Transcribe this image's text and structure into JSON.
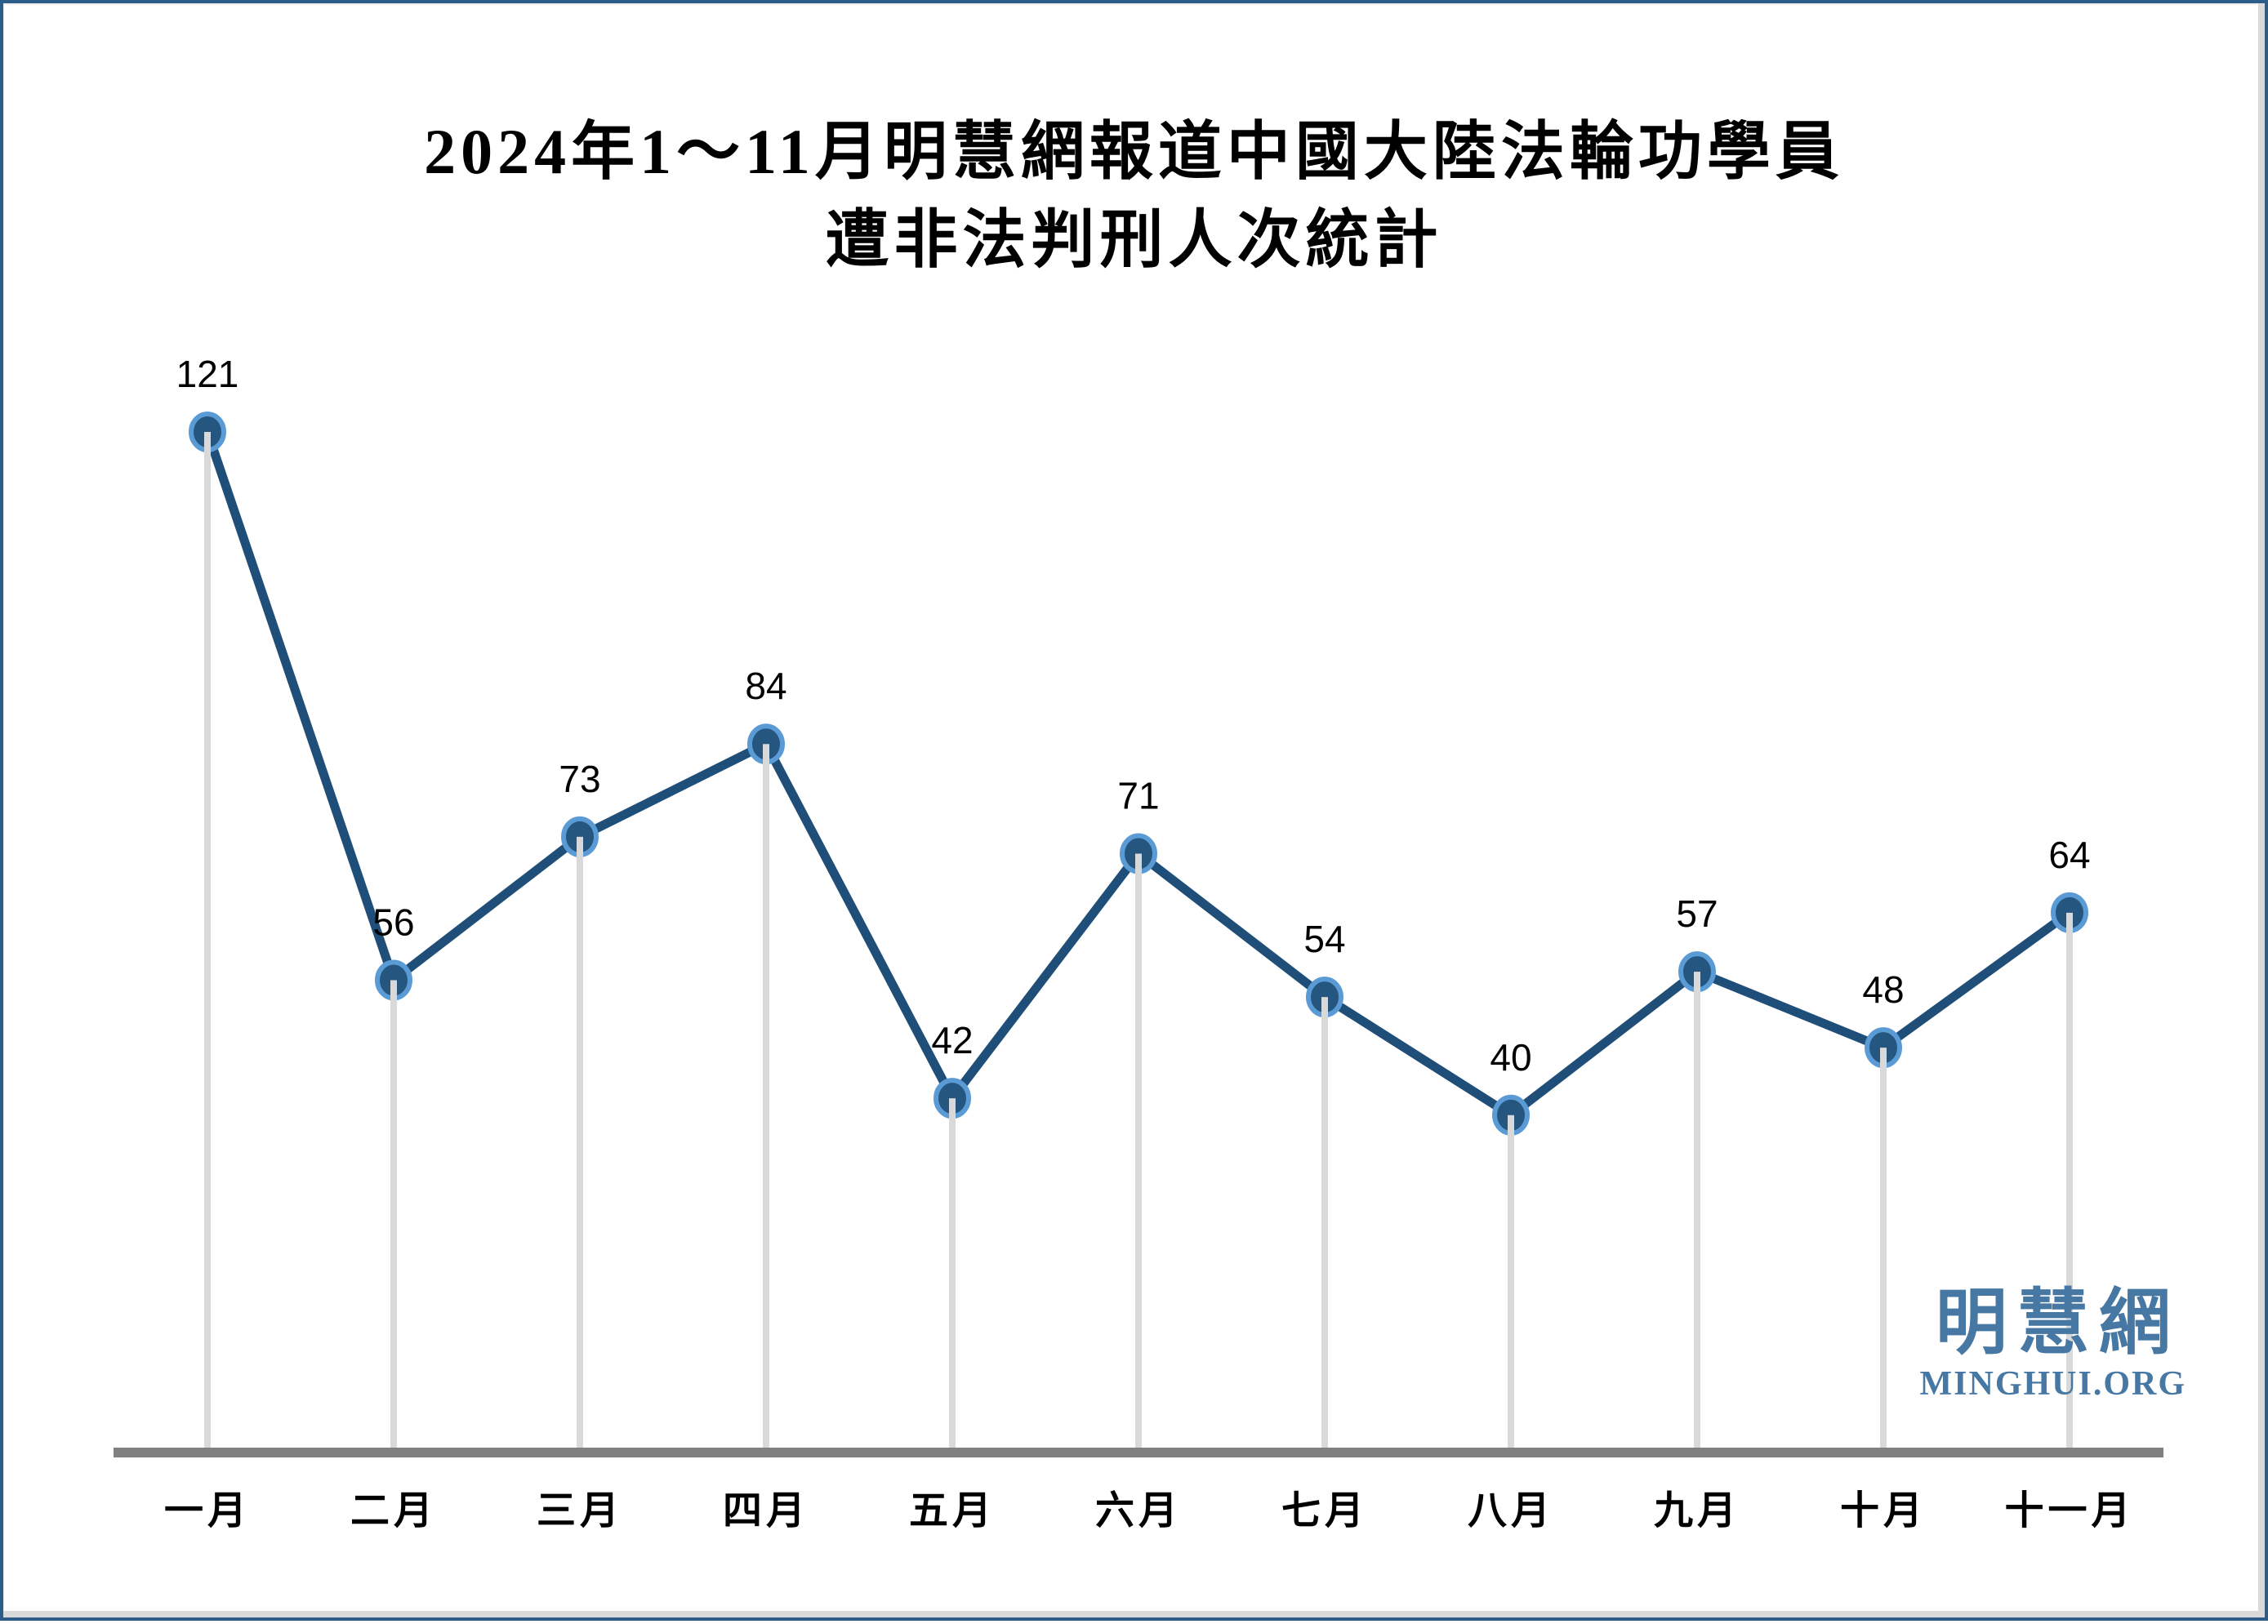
{
  "title": {
    "line1": "2024年1～11月明慧網報道中國大陸法輪功學員",
    "line2": "遭非法判刑人次統計"
  },
  "logo": {
    "chinese": "明慧網",
    "url": "MINGHUI.ORG"
  },
  "colors": {
    "line": "#1F4E79",
    "marker_fill": "#25567F",
    "marker_ring": "#5B9BD5",
    "drop_line": "#D9D9D9",
    "axis": "#808080",
    "label": "#000000",
    "logo_blue": "#4778A3",
    "frame": "#2B5C8A"
  },
  "chart_data": {
    "type": "line",
    "title": "2024年1～11月明慧網報道中國大陸法輪功學員遭非法判刑人次統計",
    "categories": [
      "一月",
      "二月",
      "三月",
      "四月",
      "五月",
      "六月",
      "七月",
      "八月",
      "九月",
      "十月",
      "十一月"
    ],
    "values": [
      121,
      56,
      73,
      84,
      42,
      71,
      54,
      40,
      57,
      48,
      64
    ],
    "xlabel": "",
    "ylabel": "",
    "ylim": [
      0,
      130
    ],
    "grid": false,
    "legend": false,
    "data_labels": true,
    "drop_lines": true,
    "marker": "circle"
  }
}
